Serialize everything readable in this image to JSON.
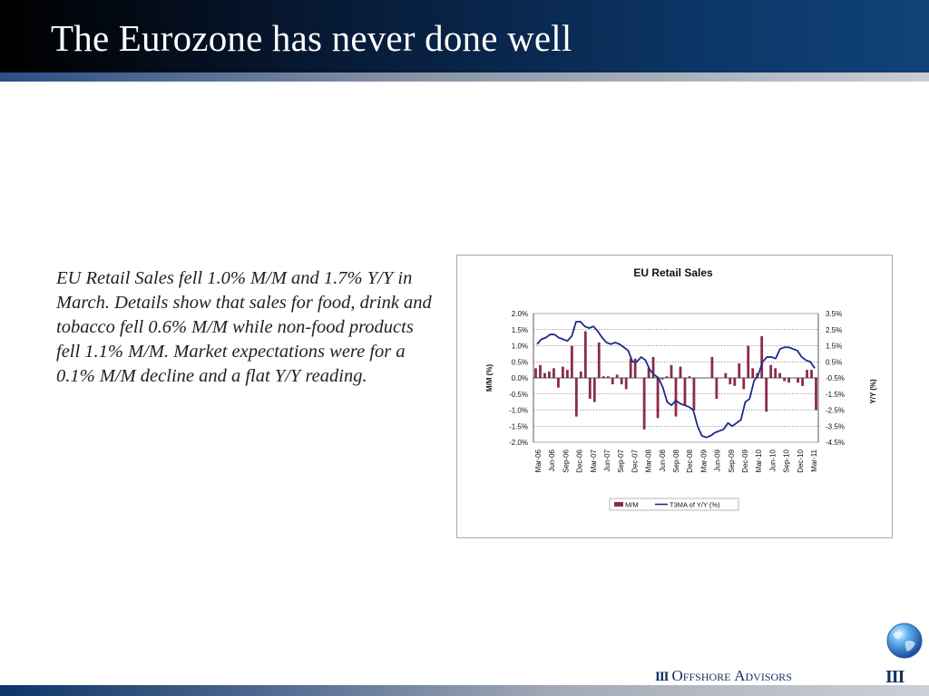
{
  "slide": {
    "title": "The Eurozone has never done well",
    "body": "EU Retail Sales fell 1.0% M/M and 1.7% Y/Y in March.  Details show that sales for food, drink and tobacco fell 0.6% M/M while non-food products fell 1.1% M/M. Market expectations were for a 0.1% M/M decline and a flat Y/Y reading."
  },
  "footer": {
    "brand_mark": "III",
    "brand_o": "O",
    "brand_ffshore": "FFSHORE",
    "brand_a": "A",
    "brand_dvisors": "DVISORS",
    "corner_mark": "III",
    "globe_icon": "globe-icon"
  },
  "colors": {
    "title_text": "#ffffff",
    "bar": "#8b2a4c",
    "line": "#1f2a8a",
    "brand": "#13305f"
  },
  "chart_data": {
    "type": "bar+line",
    "title": "EU Retail Sales",
    "ylabel": "M/M (%)",
    "y2label": "Y/Y (%)",
    "ylim": [
      -2.0,
      2.0
    ],
    "y2lim": [
      -4.5,
      3.5
    ],
    "yticks": [
      "2.0%",
      "1.5%",
      "1.0%",
      "0.5%",
      "0.0%",
      "-0.5%",
      "-1.0%",
      "-1.5%",
      "-2.0%"
    ],
    "y2ticks": [
      "3.5%",
      "2.5%",
      "1.5%",
      "0.5%",
      "-0.5%",
      "-1.5%",
      "-2.5%",
      "-3.5%",
      "-4.5%"
    ],
    "xticks": [
      "Mar-06",
      "Jun-06",
      "Sep-06",
      "Dec-06",
      "Mar-07",
      "Jun-07",
      "Sep-07",
      "Dec-07",
      "Mar-08",
      "Jun-08",
      "Sep-08",
      "Dec-08",
      "Mar-09",
      "Jun-09",
      "Sep-09",
      "Dec-09",
      "Mar-10",
      "Jun-10",
      "Sep-10",
      "Dec-10",
      "Mar-11"
    ],
    "grid": true,
    "legend_position": "bottom",
    "series": [
      {
        "name": "M/M",
        "kind": "bar",
        "axis": "left",
        "values": [
          0.3,
          0.4,
          0.15,
          0.2,
          0.3,
          -0.3,
          0.35,
          0.25,
          1.0,
          -1.2,
          0.2,
          1.45,
          -0.65,
          -0.75,
          1.1,
          0.05,
          0.05,
          -0.2,
          0.1,
          -0.2,
          -0.35,
          0.6,
          0.6,
          0.0,
          -1.6,
          0.3,
          0.65,
          -1.25,
          -0.05,
          0.05,
          0.4,
          -1.2,
          0.35,
          -0.85,
          0.05,
          -1.0,
          0.0,
          0.0,
          0.0,
          0.65,
          -0.65,
          0.0,
          0.15,
          -0.2,
          -0.25,
          0.45,
          -0.35,
          1.0,
          0.3,
          0.15,
          1.3,
          -1.05,
          0.4,
          0.3,
          0.15,
          -0.1,
          -0.15,
          0.0,
          -0.15,
          -0.25,
          0.25,
          0.25,
          -1.0
        ]
      },
      {
        "name": "T3MA of Y/Y (%)",
        "kind": "line",
        "axis": "right",
        "values": [
          1.6,
          1.9,
          2.0,
          2.2,
          2.2,
          2.0,
          1.9,
          1.8,
          2.1,
          3.0,
          3.0,
          2.7,
          2.6,
          2.7,
          2.4,
          2.0,
          1.7,
          1.6,
          1.7,
          1.6,
          1.4,
          1.2,
          0.5,
          0.5,
          0.8,
          0.6,
          0.0,
          -0.3,
          -0.5,
          -1.1,
          -2.0,
          -2.2,
          -1.9,
          -2.1,
          -2.2,
          -2.3,
          -2.5,
          -3.5,
          -4.1,
          -4.2,
          -4.1,
          -3.9,
          -3.8,
          -3.7,
          -3.3,
          -3.5,
          -3.3,
          -3.1,
          -2.0,
          -1.8,
          -0.7,
          -0.3,
          0.5,
          0.8,
          0.8,
          0.7,
          1.3,
          1.4,
          1.4,
          1.3,
          1.2,
          0.8,
          0.6,
          0.5,
          0.1
        ]
      }
    ]
  }
}
